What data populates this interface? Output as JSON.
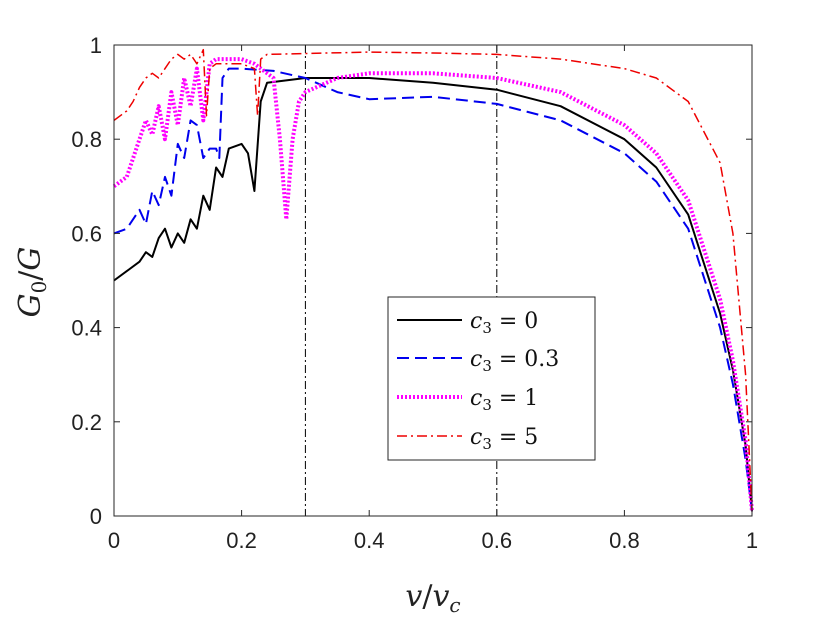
{
  "chart_data": {
    "type": "line",
    "title": "",
    "xlabel": "v/v_c",
    "ylabel": "G_0/G",
    "xlim": [
      0,
      1
    ],
    "ylim": [
      0,
      1
    ],
    "xticks": [
      0,
      0.2,
      0.4,
      0.6,
      0.8,
      1
    ],
    "yticks": [
      0,
      0.2,
      0.4,
      0.6,
      0.8,
      1
    ],
    "x_tick_labels": [
      "0",
      "0.2",
      "0.4",
      "0.6",
      "0.8",
      "1"
    ],
    "y_tick_labels": [
      "0",
      "0.2",
      "0.4",
      "0.6",
      "0.8",
      "1"
    ],
    "grid": false,
    "legend_position": "center-right",
    "vertical_reference_lines": [
      0.3,
      0.6
    ],
    "series": [
      {
        "name": "c_3 = 0",
        "color": "#000000",
        "style": "solid",
        "x": [
          0,
          0.02,
          0.04,
          0.05,
          0.06,
          0.07,
          0.08,
          0.09,
          0.1,
          0.11,
          0.12,
          0.13,
          0.14,
          0.15,
          0.16,
          0.17,
          0.18,
          0.2,
          0.21,
          0.22,
          0.23,
          0.24,
          0.3,
          0.4,
          0.5,
          0.6,
          0.7,
          0.8,
          0.85,
          0.9,
          0.95,
          0.97,
          0.99,
          1
        ],
        "y": [
          0.5,
          0.52,
          0.54,
          0.56,
          0.55,
          0.59,
          0.61,
          0.57,
          0.6,
          0.58,
          0.63,
          0.61,
          0.68,
          0.65,
          0.74,
          0.72,
          0.78,
          0.79,
          0.77,
          0.69,
          0.88,
          0.92,
          0.93,
          0.93,
          0.92,
          0.905,
          0.87,
          0.8,
          0.74,
          0.64,
          0.43,
          0.31,
          0.15,
          0.01
        ]
      },
      {
        "name": "c_3 = 0.3",
        "color": "#0000ee",
        "style": "dashed",
        "x": [
          0,
          0.02,
          0.04,
          0.05,
          0.06,
          0.07,
          0.08,
          0.09,
          0.1,
          0.11,
          0.12,
          0.13,
          0.14,
          0.15,
          0.16,
          0.165,
          0.17,
          0.18,
          0.2,
          0.25,
          0.3,
          0.35,
          0.4,
          0.5,
          0.6,
          0.7,
          0.8,
          0.85,
          0.9,
          0.95,
          0.97,
          0.99,
          1
        ],
        "y": [
          0.6,
          0.61,
          0.65,
          0.62,
          0.69,
          0.66,
          0.72,
          0.68,
          0.79,
          0.76,
          0.84,
          0.83,
          0.76,
          0.78,
          0.78,
          0.76,
          0.93,
          0.95,
          0.95,
          0.945,
          0.93,
          0.9,
          0.885,
          0.89,
          0.875,
          0.84,
          0.77,
          0.71,
          0.61,
          0.4,
          0.28,
          0.12,
          0.01
        ]
      },
      {
        "name": "c_3 = 1",
        "color": "#ff00ff",
        "style": "dotted",
        "x": [
          0,
          0.02,
          0.04,
          0.05,
          0.06,
          0.07,
          0.08,
          0.09,
          0.1,
          0.11,
          0.12,
          0.13,
          0.14,
          0.145,
          0.15,
          0.16,
          0.2,
          0.22,
          0.25,
          0.26,
          0.27,
          0.28,
          0.29,
          0.3,
          0.35,
          0.4,
          0.5,
          0.6,
          0.7,
          0.8,
          0.85,
          0.9,
          0.95,
          0.97,
          0.99,
          1
        ],
        "y": [
          0.7,
          0.72,
          0.8,
          0.84,
          0.81,
          0.87,
          0.8,
          0.9,
          0.83,
          0.93,
          0.87,
          0.95,
          0.84,
          0.9,
          0.96,
          0.97,
          0.97,
          0.96,
          0.93,
          0.8,
          0.63,
          0.8,
          0.88,
          0.9,
          0.93,
          0.94,
          0.94,
          0.93,
          0.9,
          0.83,
          0.77,
          0.67,
          0.46,
          0.33,
          0.16,
          0.01
        ]
      },
      {
        "name": "c_3 = 5",
        "color": "#ee0000",
        "style": "dashdot",
        "x": [
          0,
          0.02,
          0.03,
          0.04,
          0.05,
          0.06,
          0.07,
          0.08,
          0.09,
          0.1,
          0.11,
          0.12,
          0.13,
          0.14,
          0.145,
          0.15,
          0.16,
          0.2,
          0.22,
          0.225,
          0.23,
          0.24,
          0.3,
          0.4,
          0.5,
          0.6,
          0.7,
          0.8,
          0.85,
          0.9,
          0.95,
          0.97,
          0.99,
          1
        ],
        "y": [
          0.84,
          0.86,
          0.88,
          0.91,
          0.93,
          0.94,
          0.93,
          0.95,
          0.97,
          0.98,
          0.97,
          0.98,
          0.96,
          0.99,
          0.85,
          0.95,
          0.96,
          0.96,
          0.95,
          0.85,
          0.97,
          0.98,
          0.982,
          0.985,
          0.983,
          0.98,
          0.97,
          0.95,
          0.93,
          0.88,
          0.75,
          0.6,
          0.3,
          0.01
        ]
      }
    ],
    "legend": [
      {
        "label": "c",
        "subscript": "3",
        "rest": " = 0"
      },
      {
        "label": "c",
        "subscript": "3",
        "rest": " = 0.3"
      },
      {
        "label": "c",
        "subscript": "3",
        "rest": " = 1"
      },
      {
        "label": "c",
        "subscript": "3",
        "rest": " = 5"
      }
    ],
    "xlabel_parts": {
      "main": "v",
      "slash": "/",
      "var": "v",
      "sub": "c"
    },
    "ylabel_parts": {
      "main": "G",
      "sub": "0",
      "slash": "/",
      "var": "G"
    }
  }
}
